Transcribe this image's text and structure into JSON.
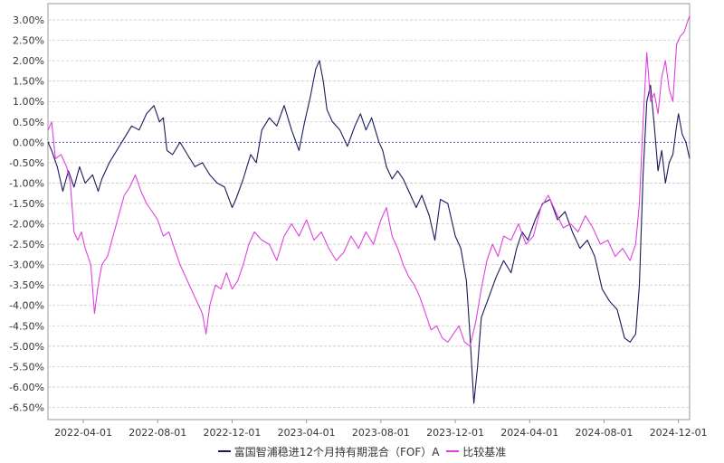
{
  "chart_data": {
    "type": "line",
    "title": "",
    "xlabel": "",
    "ylabel": "",
    "x_tick_labels": [
      "2022-04-01",
      "2022-08-01",
      "2022-12-01",
      "2023-04-01",
      "2023-08-01",
      "2023-12-01",
      "2024-04-01",
      "2024-08-01",
      "2024-12-01"
    ],
    "x_tick_months": [
      3,
      7,
      11,
      15,
      19,
      23,
      27,
      31,
      35
    ],
    "x_range_months": [
      1.1,
      35.6
    ],
    "y_tick_labels": [
      "3.00%",
      "2.50%",
      "2.00%",
      "1.50%",
      "1.00%",
      "0.50%",
      "0.00%",
      "-0.50%",
      "-1.00%",
      "-1.50%",
      "-2.00%",
      "-2.50%",
      "-3.00%",
      "-3.50%",
      "-4.00%",
      "-4.50%",
      "-5.00%",
      "-5.50%",
      "-6.00%",
      "-6.50%"
    ],
    "y_tick_values": [
      3.0,
      2.5,
      2.0,
      1.5,
      1.0,
      0.5,
      0.0,
      -0.5,
      -1.0,
      -1.5,
      -2.0,
      -2.5,
      -3.0,
      -3.5,
      -4.0,
      -4.5,
      -5.0,
      -5.5,
      -6.0,
      -6.5
    ],
    "ylim": [
      -6.8,
      3.4
    ],
    "grid": true,
    "zero_line": true,
    "legend_position": "bottom-center",
    "series": [
      {
        "name": "富国智浦稳进12个月持有期混合（FOF）A",
        "color": "#1a1a5c",
        "points": [
          [
            1.1,
            0.0
          ],
          [
            1.3,
            -0.2
          ],
          [
            1.6,
            -0.6
          ],
          [
            1.9,
            -1.2
          ],
          [
            2.2,
            -0.7
          ],
          [
            2.5,
            -1.1
          ],
          [
            2.8,
            -0.6
          ],
          [
            3.1,
            -1.0
          ],
          [
            3.5,
            -0.8
          ],
          [
            3.8,
            -1.2
          ],
          [
            4.0,
            -0.9
          ],
          [
            4.4,
            -0.5
          ],
          [
            4.8,
            -0.2
          ],
          [
            5.2,
            0.1
          ],
          [
            5.6,
            0.4
          ],
          [
            6.0,
            0.3
          ],
          [
            6.4,
            0.7
          ],
          [
            6.8,
            0.9
          ],
          [
            7.1,
            0.5
          ],
          [
            7.3,
            0.6
          ],
          [
            7.5,
            -0.2
          ],
          [
            7.8,
            -0.3
          ],
          [
            8.2,
            0.0
          ],
          [
            8.6,
            -0.3
          ],
          [
            9.0,
            -0.6
          ],
          [
            9.4,
            -0.5
          ],
          [
            9.8,
            -0.8
          ],
          [
            10.2,
            -1.0
          ],
          [
            10.6,
            -1.1
          ],
          [
            11.0,
            -1.6
          ],
          [
            11.2,
            -1.4
          ],
          [
            11.6,
            -0.9
          ],
          [
            12.0,
            -0.3
          ],
          [
            12.3,
            -0.5
          ],
          [
            12.6,
            0.3
          ],
          [
            13.0,
            0.6
          ],
          [
            13.4,
            0.4
          ],
          [
            13.8,
            0.9
          ],
          [
            14.2,
            0.3
          ],
          [
            14.6,
            -0.2
          ],
          [
            14.9,
            0.5
          ],
          [
            15.2,
            1.1
          ],
          [
            15.5,
            1.8
          ],
          [
            15.7,
            2.0
          ],
          [
            15.9,
            1.5
          ],
          [
            16.1,
            0.8
          ],
          [
            16.4,
            0.5
          ],
          [
            16.8,
            0.3
          ],
          [
            17.2,
            -0.1
          ],
          [
            17.6,
            0.4
          ],
          [
            17.9,
            0.7
          ],
          [
            18.2,
            0.3
          ],
          [
            18.5,
            0.6
          ],
          [
            18.9,
            0.0
          ],
          [
            19.1,
            -0.2
          ],
          [
            19.3,
            -0.6
          ],
          [
            19.6,
            -0.9
          ],
          [
            19.9,
            -0.7
          ],
          [
            20.2,
            -0.9
          ],
          [
            20.5,
            -1.2
          ],
          [
            20.9,
            -1.6
          ],
          [
            21.2,
            -1.3
          ],
          [
            21.6,
            -1.8
          ],
          [
            21.9,
            -2.4
          ],
          [
            22.2,
            -1.4
          ],
          [
            22.6,
            -1.5
          ],
          [
            23.0,
            -2.3
          ],
          [
            23.3,
            -2.6
          ],
          [
            23.6,
            -3.4
          ],
          [
            23.8,
            -4.8
          ],
          [
            24.0,
            -6.4
          ],
          [
            24.2,
            -5.5
          ],
          [
            24.4,
            -4.3
          ],
          [
            24.8,
            -3.8
          ],
          [
            25.2,
            -3.3
          ],
          [
            25.6,
            -2.9
          ],
          [
            26.0,
            -3.2
          ],
          [
            26.3,
            -2.6
          ],
          [
            26.6,
            -2.2
          ],
          [
            26.9,
            -2.4
          ],
          [
            27.3,
            -1.9
          ],
          [
            27.7,
            -1.5
          ],
          [
            28.1,
            -1.4
          ],
          [
            28.5,
            -1.9
          ],
          [
            28.9,
            -1.7
          ],
          [
            29.3,
            -2.2
          ],
          [
            29.7,
            -2.6
          ],
          [
            30.1,
            -2.4
          ],
          [
            30.5,
            -2.8
          ],
          [
            30.9,
            -3.6
          ],
          [
            31.3,
            -3.9
          ],
          [
            31.7,
            -4.1
          ],
          [
            32.1,
            -4.8
          ],
          [
            32.4,
            -4.9
          ],
          [
            32.7,
            -4.7
          ],
          [
            32.9,
            -3.5
          ],
          [
            33.1,
            -0.8
          ],
          [
            33.3,
            1.0
          ],
          [
            33.5,
            1.4
          ],
          [
            33.7,
            0.4
          ],
          [
            33.9,
            -0.7
          ],
          [
            34.1,
            -0.2
          ],
          [
            34.3,
            -1.0
          ],
          [
            34.5,
            -0.5
          ],
          [
            34.7,
            -0.3
          ],
          [
            34.9,
            0.4
          ],
          [
            35.0,
            0.7
          ],
          [
            35.2,
            0.2
          ],
          [
            35.4,
            0.0
          ],
          [
            35.6,
            -0.4
          ]
        ]
      },
      {
        "name": "比较基准",
        "color": "#e040e0",
        "points": [
          [
            1.1,
            0.3
          ],
          [
            1.3,
            0.5
          ],
          [
            1.5,
            -0.4
          ],
          [
            1.8,
            -0.3
          ],
          [
            2.1,
            -0.6
          ],
          [
            2.3,
            -1.0
          ],
          [
            2.5,
            -2.2
          ],
          [
            2.7,
            -2.4
          ],
          [
            2.9,
            -2.2
          ],
          [
            3.1,
            -2.6
          ],
          [
            3.4,
            -3.0
          ],
          [
            3.6,
            -4.2
          ],
          [
            3.8,
            -3.5
          ],
          [
            4.0,
            -3.0
          ],
          [
            4.3,
            -2.8
          ],
          [
            4.6,
            -2.3
          ],
          [
            4.9,
            -1.8
          ],
          [
            5.2,
            -1.3
          ],
          [
            5.5,
            -1.1
          ],
          [
            5.8,
            -0.8
          ],
          [
            6.1,
            -1.2
          ],
          [
            6.4,
            -1.5
          ],
          [
            6.7,
            -1.7
          ],
          [
            7.0,
            -1.9
          ],
          [
            7.3,
            -2.3
          ],
          [
            7.6,
            -2.2
          ],
          [
            7.9,
            -2.6
          ],
          [
            8.2,
            -3.0
          ],
          [
            8.5,
            -3.3
          ],
          [
            8.8,
            -3.6
          ],
          [
            9.1,
            -3.9
          ],
          [
            9.4,
            -4.2
          ],
          [
            9.6,
            -4.7
          ],
          [
            9.8,
            -4.0
          ],
          [
            10.1,
            -3.5
          ],
          [
            10.4,
            -3.6
          ],
          [
            10.7,
            -3.2
          ],
          [
            11.0,
            -3.6
          ],
          [
            11.3,
            -3.4
          ],
          [
            11.6,
            -3.0
          ],
          [
            11.9,
            -2.5
          ],
          [
            12.2,
            -2.2
          ],
          [
            12.6,
            -2.4
          ],
          [
            13.0,
            -2.5
          ],
          [
            13.4,
            -2.9
          ],
          [
            13.8,
            -2.3
          ],
          [
            14.2,
            -2.0
          ],
          [
            14.6,
            -2.3
          ],
          [
            15.0,
            -1.9
          ],
          [
            15.4,
            -2.4
          ],
          [
            15.8,
            -2.2
          ],
          [
            16.2,
            -2.6
          ],
          [
            16.6,
            -2.9
          ],
          [
            17.0,
            -2.7
          ],
          [
            17.4,
            -2.3
          ],
          [
            17.8,
            -2.6
          ],
          [
            18.2,
            -2.2
          ],
          [
            18.6,
            -2.5
          ],
          [
            19.0,
            -1.9
          ],
          [
            19.3,
            -1.6
          ],
          [
            19.6,
            -2.3
          ],
          [
            19.9,
            -2.6
          ],
          [
            20.2,
            -3.0
          ],
          [
            20.5,
            -3.3
          ],
          [
            20.8,
            -3.5
          ],
          [
            21.1,
            -3.8
          ],
          [
            21.4,
            -4.2
          ],
          [
            21.7,
            -4.6
          ],
          [
            22.0,
            -4.5
          ],
          [
            22.3,
            -4.8
          ],
          [
            22.6,
            -4.9
          ],
          [
            22.9,
            -4.7
          ],
          [
            23.2,
            -4.5
          ],
          [
            23.5,
            -4.9
          ],
          [
            23.8,
            -5.0
          ],
          [
            24.1,
            -4.4
          ],
          [
            24.4,
            -3.6
          ],
          [
            24.7,
            -2.9
          ],
          [
            25.0,
            -2.5
          ],
          [
            25.3,
            -2.8
          ],
          [
            25.6,
            -2.3
          ],
          [
            26.0,
            -2.4
          ],
          [
            26.4,
            -2.0
          ],
          [
            26.8,
            -2.5
          ],
          [
            27.2,
            -2.3
          ],
          [
            27.6,
            -1.6
          ],
          [
            28.0,
            -1.3
          ],
          [
            28.4,
            -1.7
          ],
          [
            28.8,
            -2.1
          ],
          [
            29.2,
            -2.0
          ],
          [
            29.6,
            -2.2
          ],
          [
            30.0,
            -1.8
          ],
          [
            30.4,
            -2.1
          ],
          [
            30.8,
            -2.5
          ],
          [
            31.2,
            -2.4
          ],
          [
            31.6,
            -2.8
          ],
          [
            32.0,
            -2.6
          ],
          [
            32.4,
            -2.9
          ],
          [
            32.7,
            -2.5
          ],
          [
            32.9,
            -1.5
          ],
          [
            33.1,
            0.5
          ],
          [
            33.3,
            2.2
          ],
          [
            33.5,
            1.0
          ],
          [
            33.7,
            1.2
          ],
          [
            33.9,
            0.7
          ],
          [
            34.1,
            1.6
          ],
          [
            34.3,
            2.0
          ],
          [
            34.5,
            1.3
          ],
          [
            34.7,
            1.0
          ],
          [
            34.9,
            2.4
          ],
          [
            35.1,
            2.6
          ],
          [
            35.3,
            2.7
          ],
          [
            35.6,
            3.1
          ]
        ]
      }
    ]
  }
}
